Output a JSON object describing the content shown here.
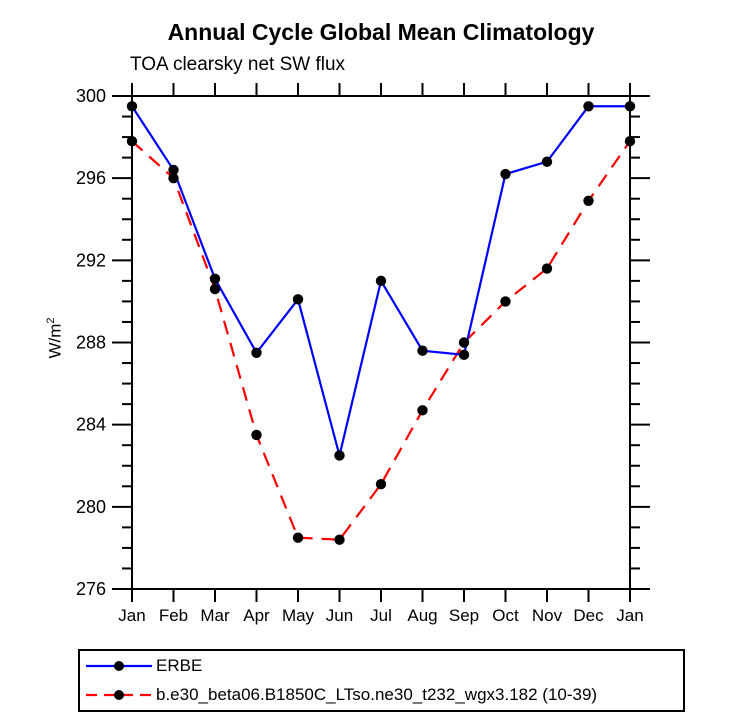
{
  "title": "Annual Cycle Global Mean Climatology",
  "subtitle": "TOA clearsky net SW flux",
  "y_axis_label": {
    "text": "W/m",
    "superscript": "2"
  },
  "chart_data": {
    "type": "line",
    "title": "Annual Cycle Global Mean Climatology",
    "subtitle": "TOA clearsky net SW flux",
    "ylabel": "W/m^2",
    "xlabel": "",
    "categories": [
      "Jan",
      "Feb",
      "Mar",
      "Apr",
      "May",
      "Jun",
      "Jul",
      "Aug",
      "Sep",
      "Oct",
      "Nov",
      "Dec",
      "Jan"
    ],
    "ylim": [
      276,
      300
    ],
    "yticks": [
      276,
      280,
      284,
      288,
      292,
      296,
      300
    ],
    "yminor_step": 1,
    "grid": false,
    "legend_position": "bottom-left-box",
    "series": [
      {
        "name": "ERBE",
        "color": "#0000ff",
        "line_style": "solid",
        "marker": "filled-circle",
        "marker_color": "#000000",
        "values": [
          299.5,
          296.4,
          291.1,
          287.5,
          290.1,
          282.5,
          291.0,
          287.6,
          287.4,
          296.2,
          296.8,
          299.5,
          299.5
        ]
      },
      {
        "name": "b.e30_beta06.B1850C_LTso.ne30_t232_wgx3.182 (10-39)",
        "color": "#ff0000",
        "line_style": "dashed",
        "marker": "filled-circle",
        "marker_color": "#000000",
        "values": [
          297.8,
          296.0,
          290.6,
          283.5,
          278.5,
          278.4,
          281.1,
          284.7,
          288.0,
          290.0,
          291.6,
          294.9,
          297.8
        ]
      }
    ]
  }
}
